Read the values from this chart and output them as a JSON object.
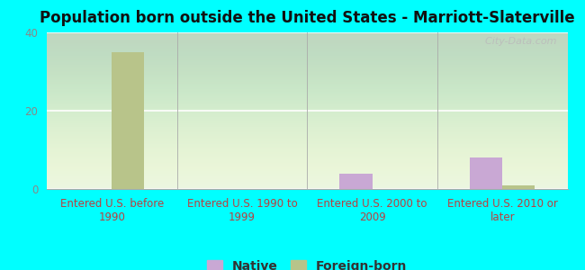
{
  "title": "Population born outside the United States - Marriott-Slaterville",
  "categories": [
    "Entered U.S. before\n1990",
    "Entered U.S. 1990 to\n1999",
    "Entered U.S. 2000 to\n2009",
    "Entered U.S. 2010 or\nlater"
  ],
  "native_values": [
    0,
    0,
    4,
    8
  ],
  "foreign_born_values": [
    35,
    0,
    0,
    1
  ],
  "native_color": "#c9a8d4",
  "foreign_born_color": "#b8c48a",
  "background_color": "#00ffff",
  "ylim": [
    0,
    40
  ],
  "yticks": [
    0,
    20,
    40
  ],
  "bar_width": 0.25,
  "title_fontsize": 12,
  "tick_label_fontsize": 8.5,
  "legend_fontsize": 10,
  "watermark_text": "  City-Data.com",
  "watermark_color": "#bbbbbb"
}
